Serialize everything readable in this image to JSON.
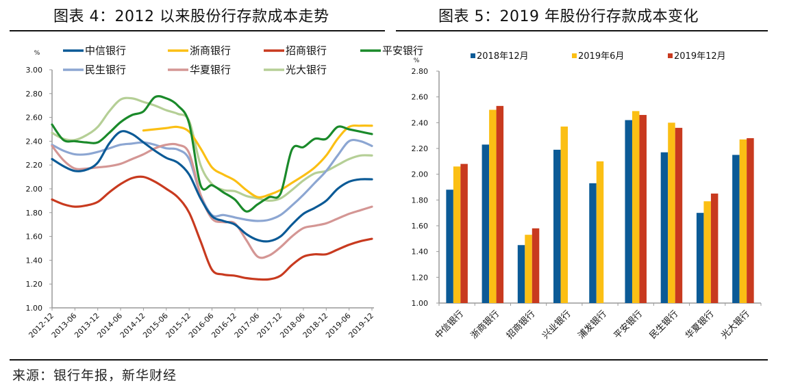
{
  "titles": {
    "left": "图表 4：2012 以来股份行存款成本走势",
    "right": "图表 5：2019 年股份行存款成本变化"
  },
  "source": "来源：银行年报，新华财经",
  "chart_data": [
    {
      "type": "line",
      "title": "2012 以来股份行存款成本走势",
      "unit_label": "%",
      "ylabel": "%",
      "xlabel": "",
      "ylim": [
        1.0,
        3.0
      ],
      "yticks": [
        "3.00",
        "2.80",
        "2.60",
        "2.40",
        "2.20",
        "2.00",
        "1.80",
        "1.60",
        "1.40",
        "1.20",
        "1.00"
      ],
      "grid": false,
      "legend_position": "top",
      "x_tick_labels": [
        "2012-12",
        "2013-06",
        "2013-12",
        "2014-06",
        "2014-12",
        "2015-06",
        "2015-12",
        "2016-06",
        "2016-12",
        "2017-06",
        "2017-12",
        "2018-06",
        "2018-12",
        "2019-06",
        "2019-12"
      ],
      "x_points_note": "quarterly points from 2012-12 to 2019-12",
      "x": [
        "2012-12",
        "2013-03",
        "2013-06",
        "2013-09",
        "2013-12",
        "2014-03",
        "2014-06",
        "2014-09",
        "2014-12",
        "2015-03",
        "2015-06",
        "2015-09",
        "2015-12",
        "2016-03",
        "2016-06",
        "2016-09",
        "2016-12",
        "2017-03",
        "2017-06",
        "2017-09",
        "2017-12",
        "2018-03",
        "2018-06",
        "2018-09",
        "2018-12",
        "2019-03",
        "2019-06",
        "2019-09",
        "2019-12"
      ],
      "series": [
        {
          "name": "中信银行",
          "color": "#0b5a96",
          "values": [
            2.25,
            2.19,
            2.15,
            2.16,
            2.22,
            2.38,
            2.48,
            2.46,
            2.39,
            2.32,
            2.26,
            2.22,
            2.12,
            1.92,
            1.77,
            1.73,
            1.7,
            1.62,
            1.57,
            1.56,
            1.6,
            1.7,
            1.79,
            1.84,
            1.9,
            2.0,
            2.06,
            2.08,
            2.08
          ]
        },
        {
          "name": "浙商银行",
          "color": "#fbbf14",
          "values": [
            null,
            null,
            null,
            null,
            null,
            null,
            null,
            null,
            2.49,
            2.5,
            2.51,
            2.52,
            2.48,
            2.34,
            2.18,
            2.12,
            2.07,
            1.99,
            1.93,
            1.95,
            1.99,
            2.05,
            2.11,
            2.18,
            2.28,
            2.42,
            2.52,
            2.53,
            2.53
          ]
        },
        {
          "name": "招商银行",
          "color": "#c83a1f",
          "values": [
            1.91,
            1.87,
            1.85,
            1.86,
            1.89,
            1.97,
            2.04,
            2.09,
            2.1,
            2.06,
            2.0,
            1.93,
            1.8,
            1.56,
            1.32,
            1.28,
            1.27,
            1.25,
            1.24,
            1.24,
            1.27,
            1.36,
            1.43,
            1.45,
            1.45,
            1.49,
            1.53,
            1.56,
            1.58
          ]
        },
        {
          "name": "平安银行",
          "color": "#1a8a2a",
          "values": [
            2.54,
            2.41,
            2.4,
            2.39,
            2.39,
            2.47,
            2.56,
            2.62,
            2.65,
            2.77,
            2.76,
            2.7,
            2.55,
            2.03,
            2.03,
            1.97,
            1.91,
            1.81,
            1.87,
            1.93,
            1.96,
            2.33,
            2.35,
            2.42,
            2.42,
            2.52,
            2.5,
            2.48,
            2.46
          ]
        },
        {
          "name": "民生银行",
          "color": "#8ca6d2",
          "values": [
            2.37,
            2.32,
            2.29,
            2.29,
            2.31,
            2.34,
            2.37,
            2.38,
            2.39,
            2.37,
            2.34,
            2.33,
            2.25,
            1.95,
            1.78,
            1.78,
            1.76,
            1.74,
            1.73,
            1.74,
            1.78,
            1.86,
            1.95,
            2.05,
            2.15,
            2.28,
            2.4,
            2.4,
            2.36
          ]
        },
        {
          "name": "华夏银行",
          "color": "#d49694",
          "values": [
            2.36,
            2.24,
            2.17,
            2.17,
            2.18,
            2.19,
            2.21,
            2.25,
            2.29,
            2.34,
            2.37,
            2.37,
            2.3,
            1.95,
            1.75,
            1.72,
            1.71,
            1.57,
            1.43,
            1.44,
            1.51,
            1.6,
            1.67,
            1.69,
            1.71,
            1.75,
            1.79,
            1.82,
            1.85
          ]
        },
        {
          "name": "光大银行",
          "color": "#b5cf96",
          "values": [
            2.47,
            2.42,
            2.41,
            2.45,
            2.52,
            2.65,
            2.75,
            2.76,
            2.73,
            2.7,
            2.66,
            2.63,
            2.57,
            2.2,
            2.04,
            1.99,
            1.98,
            1.94,
            1.92,
            1.9,
            1.92,
            1.99,
            2.07,
            2.13,
            2.15,
            2.2,
            2.25,
            2.28,
            2.28
          ]
        }
      ]
    },
    {
      "type": "bar",
      "title": "2019 年股份行存款成本变化",
      "unit_label": "%",
      "ylabel": "%",
      "xlabel": "",
      "ylim": [
        1.0,
        2.8
      ],
      "yticks": [
        "2.80",
        "2.60",
        "2.40",
        "2.20",
        "2.00",
        "1.80",
        "1.60",
        "1.40",
        "1.20",
        "1.00"
      ],
      "grid": false,
      "legend_position": "top",
      "categories": [
        "中信银行",
        "浙商银行",
        "招商银行",
        "兴业银行",
        "浦发银行",
        "平安银行",
        "民生银行",
        "华夏银行",
        "光大银行"
      ],
      "series": [
        {
          "name": "2018年12月",
          "color": "#0b5a96",
          "values": [
            1.88,
            2.23,
            1.45,
            2.19,
            1.93,
            2.42,
            2.17,
            1.7,
            2.15
          ]
        },
        {
          "name": "2019年6月",
          "color": "#fbbf14",
          "values": [
            2.06,
            2.5,
            1.53,
            2.37,
            2.1,
            2.49,
            2.4,
            1.79,
            2.27
          ]
        },
        {
          "name": "2019年12月",
          "color": "#c83a1f",
          "values": [
            2.08,
            2.53,
            1.58,
            null,
            null,
            2.46,
            2.36,
            1.85,
            2.28
          ]
        }
      ]
    }
  ]
}
